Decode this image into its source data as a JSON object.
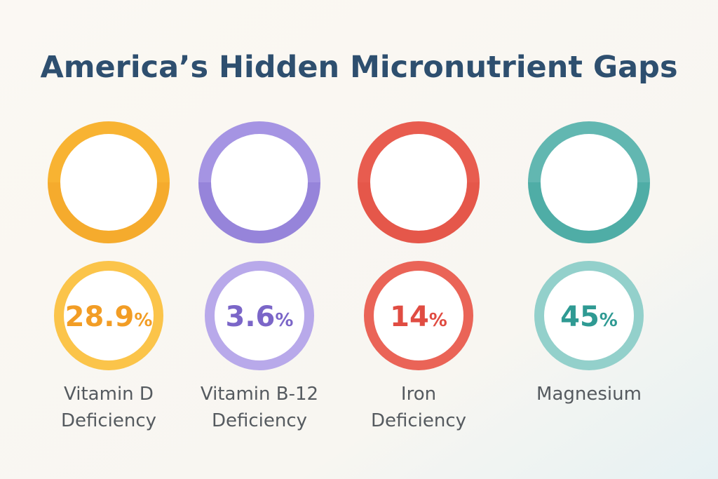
{
  "header": {
    "title": "America’s Hidden Micronutrient Gaps"
  },
  "items": [
    {
      "value": 28.9,
      "unit": "%",
      "label": [
        "Vitamin D",
        "Deficiency"
      ],
      "color": "#f8b332",
      "dark": "#f29d25",
      "light": "#fbc44a"
    },
    {
      "value": 3.6,
      "unit": "%",
      "label": [
        "Vitamin B-12",
        "Deficiency"
      ],
      "color": "#a594e3",
      "dark": "#7b66c8",
      "light": "#b8a9ea"
    },
    {
      "value": 14,
      "unit": "%",
      "label": [
        "Iron",
        "Deficiency"
      ],
      "color": "#e85c4f",
      "dark": "#e04c42",
      "light": "#ea6457"
    },
    {
      "value": 45,
      "unit": "%",
      "label": [
        "Magnesium"
      ],
      "color": "#62b7b1",
      "dark": "#2f9a93",
      "light": "#93d0cb"
    }
  ]
}
